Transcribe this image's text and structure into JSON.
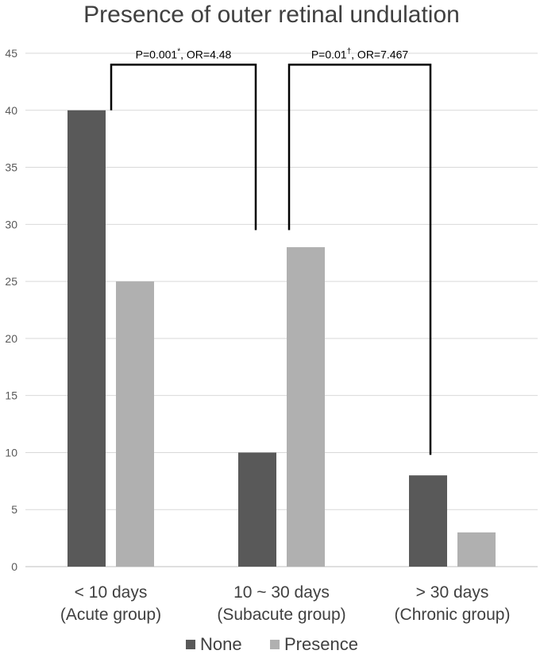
{
  "chart_data": {
    "type": "bar",
    "title": "Presence of outer retinal undulation",
    "xlabel": "",
    "ylabel": "",
    "categories": [
      [
        "< 10 days",
        "(Acute group)"
      ],
      [
        "10 ~ 30 days",
        "(Subacute group)"
      ],
      [
        "> 30 days",
        "(Chronic group)"
      ]
    ],
    "series": [
      {
        "name": "None",
        "color": "#595959",
        "values": [
          40,
          10,
          8
        ]
      },
      {
        "name": "Presence",
        "color": "#b0b0b0",
        "values": [
          25,
          28,
          3
        ]
      }
    ],
    "ylim": [
      0,
      45
    ],
    "yticks": [
      0,
      5,
      10,
      15,
      20,
      25,
      30,
      35,
      40,
      45
    ],
    "grid": true,
    "legend": "bottom",
    "annotations": [
      {
        "text": "P=0.001",
        "sup": "*",
        "suffix": ", OR=4.48",
        "from_category": 0,
        "to_category": 1,
        "level": 44,
        "left_end": 40,
        "right_end": 29.5
      },
      {
        "text": "P=0.01",
        "sup": "†",
        "suffix": ", OR=7.467",
        "from_category": 1,
        "to_category": 2,
        "level": 44,
        "left_end": 29.5,
        "right_end": 9.8
      }
    ]
  }
}
